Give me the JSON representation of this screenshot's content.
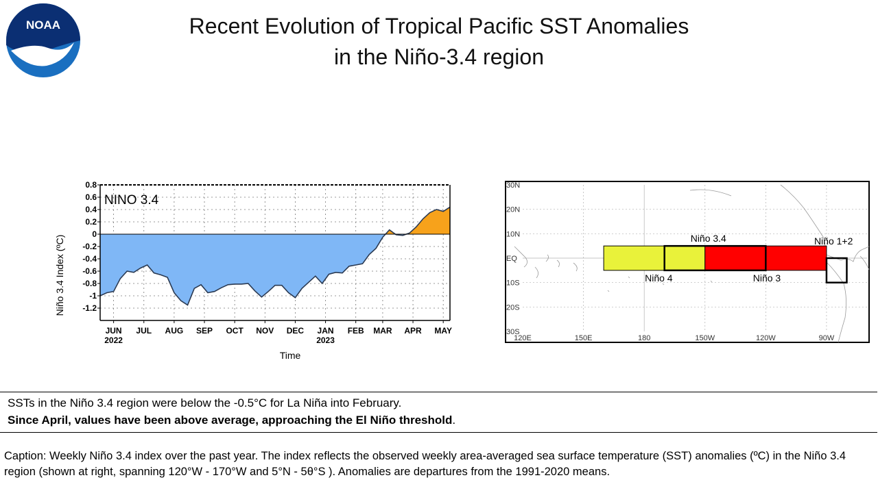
{
  "logo": {
    "text": "NOAA",
    "colors": {
      "blue": "#1a6fc0",
      "navy": "#0b2f73",
      "white": "#ffffff"
    }
  },
  "title": {
    "line1": "Recent Evolution of Tropical Pacific SST Anomalies",
    "line2": "in the Niño-3.4 region"
  },
  "chart_data": {
    "type": "area",
    "title": "NINO 3.4",
    "ylabel": "Niño 3.4 Index (ºC)",
    "xlabel": "Time",
    "ylim": [
      -1.4,
      0.8
    ],
    "yticks": [
      "0.8",
      "0.6",
      "0.4",
      "0.2",
      "0",
      "-0.2",
      "-0.4",
      "-0.6",
      "-0.8",
      "-1",
      "-1.2"
    ],
    "ytick_values": [
      0.8,
      0.6,
      0.4,
      0.2,
      0,
      -0.2,
      -0.4,
      -0.6,
      -0.8,
      -1,
      -1.2
    ],
    "xlim_weeks": [
      0,
      52
    ],
    "xticks": [
      {
        "label": "JUN",
        "sub": "2022",
        "week": 2
      },
      {
        "label": "JUL",
        "sub": "",
        "week": 6.5
      },
      {
        "label": "AUG",
        "sub": "",
        "week": 11
      },
      {
        "label": "SEP",
        "sub": "",
        "week": 15.5
      },
      {
        "label": "OCT",
        "sub": "",
        "week": 20
      },
      {
        "label": "NOV",
        "sub": "",
        "week": 24.5
      },
      {
        "label": "DEC",
        "sub": "",
        "week": 29
      },
      {
        "label": "JAN",
        "sub": "2023",
        "week": 33.5
      },
      {
        "label": "FEB",
        "sub": "",
        "week": 38
      },
      {
        "label": "MAR",
        "sub": "",
        "week": 42
      },
      {
        "label": "APR",
        "sub": "",
        "week": 46.5
      },
      {
        "label": "MAY",
        "sub": "",
        "week": 51
      }
    ],
    "weekly_values": [
      -1.0,
      -0.95,
      -0.93,
      -0.72,
      -0.6,
      -0.62,
      -0.55,
      -0.5,
      -0.63,
      -0.66,
      -0.7,
      -0.95,
      -1.08,
      -1.15,
      -0.88,
      -0.82,
      -0.95,
      -0.93,
      -0.87,
      -0.82,
      -0.81,
      -0.81,
      -0.8,
      -0.92,
      -1.02,
      -0.93,
      -0.83,
      -0.83,
      -0.95,
      -1.03,
      -0.88,
      -0.78,
      -0.68,
      -0.8,
      -0.65,
      -0.62,
      -0.63,
      -0.52,
      -0.5,
      -0.48,
      -0.33,
      -0.23,
      -0.05,
      0.07,
      -0.01,
      -0.02,
      0.02,
      0.12,
      0.25,
      0.35,
      0.4,
      0.37,
      0.44
    ],
    "colors": {
      "negative": "#7fb7f6",
      "positive": "#f7a21b",
      "line": "#2b3a52",
      "grid": "#777777"
    }
  },
  "map": {
    "lat_labels": [
      "30N",
      "20N",
      "10N",
      "EQ",
      "10S",
      "20S",
      "30S"
    ],
    "lon_labels": [
      "120E",
      "150E",
      "180",
      "150W",
      "120W",
      "90W"
    ],
    "regions": {
      "nino4": {
        "label": "Niño 4",
        "lon": [
          160,
          210
        ],
        "lat": [
          -5,
          5
        ],
        "color": "#e9f23a"
      },
      "nino3": {
        "label": "Niño 3",
        "lon": [
          210,
          270
        ],
        "lat": [
          -5,
          5
        ],
        "color": "#ff0000"
      },
      "nino34": {
        "label": "Niño 3.4",
        "lon": [
          190,
          240
        ],
        "lat": [
          -5,
          5
        ]
      },
      "nino12": {
        "label": "Niño 1+2",
        "lon": [
          270,
          280
        ],
        "lat": [
          -10,
          0
        ]
      }
    }
  },
  "summary": {
    "line1": "SSTs in the Niño 3.4 region were below the -0.5°C for La Niña into February.",
    "line2_bold": "Since April, values have been above average, approaching  the El Niño threshold",
    "line2_end": "."
  },
  "caption": "Caption: Weekly Niño 3.4 index over the past year. The index reflects the observed weekly area-averaged sea surface temperature (SST) anomalies (ºC) in the Niño 3.4 region (shown at right, spanning 120°W - 170°W and 5°N - 5θ°S ). Anomalies are departures from the 1991-2020 means."
}
